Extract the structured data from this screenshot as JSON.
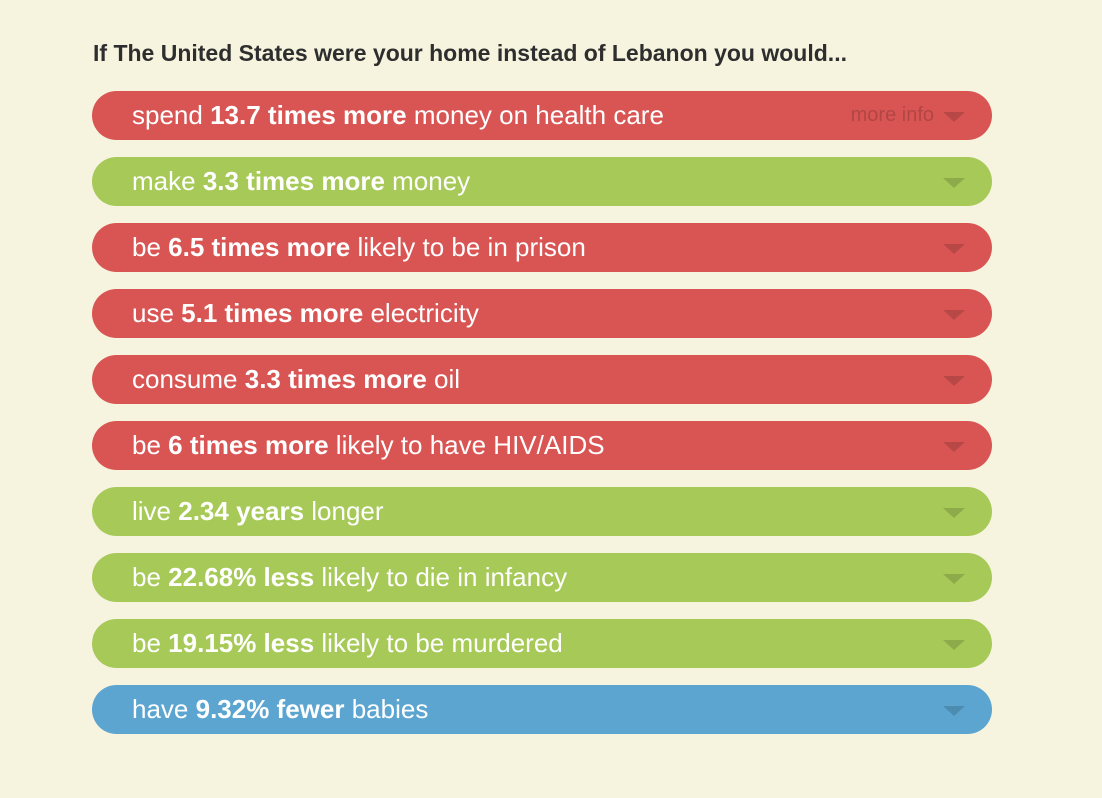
{
  "title": "If The United States were your home instead of Lebanon you would...",
  "more_info": "more info",
  "colors": {
    "bad": "#d95553",
    "good": "#a6c957",
    "neutral": "#5ba5d0"
  },
  "items": [
    {
      "pre": "spend ",
      "bold": "13.7 times more",
      "post": " money on health care",
      "type": "red"
    },
    {
      "pre": "make ",
      "bold": "3.3 times more",
      "post": " money",
      "type": "green"
    },
    {
      "pre": "be ",
      "bold": "6.5 times more",
      "post": " likely to be in prison",
      "type": "red"
    },
    {
      "pre": "use ",
      "bold": "5.1 times more",
      "post": " electricity",
      "type": "red"
    },
    {
      "pre": "consume ",
      "bold": "3.3 times more",
      "post": " oil",
      "type": "red"
    },
    {
      "pre": "be ",
      "bold": "6 times more",
      "post": " likely to have HIV/AIDS",
      "type": "red"
    },
    {
      "pre": "live ",
      "bold": "2.34 years",
      "post": " longer",
      "type": "green"
    },
    {
      "pre": "be ",
      "bold": "22.68% less",
      "post": " likely to die in infancy",
      "type": "green"
    },
    {
      "pre": "be ",
      "bold": "19.15% less",
      "post": " likely to be murdered",
      "type": "green"
    },
    {
      "pre": "have ",
      "bold": "9.32% fewer",
      "post": " babies",
      "type": "blue"
    }
  ]
}
